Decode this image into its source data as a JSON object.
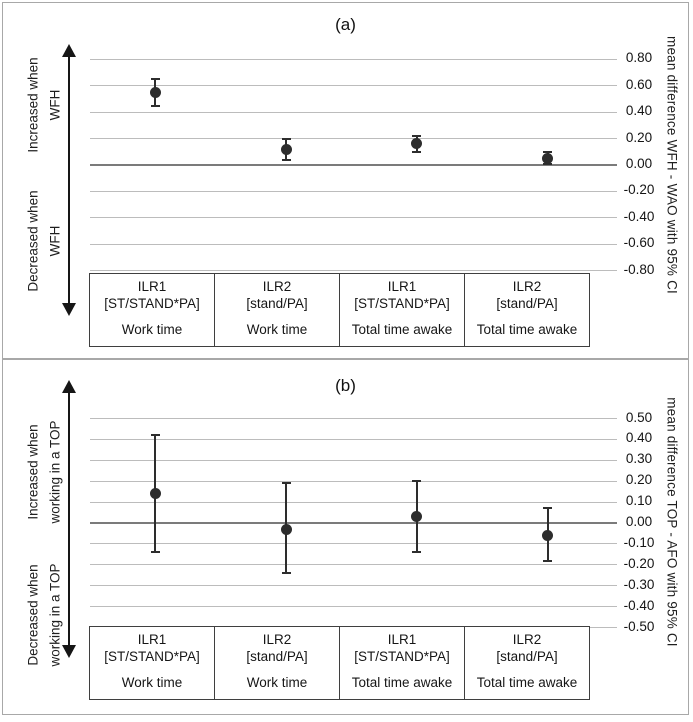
{
  "figure": {
    "accent_color": "#2d2d2d",
    "gridline_color": "#bcbcbc",
    "zero_line_color": "#7b7b7b",
    "frame_color": "#a8a8a8",
    "table_border_color": "#3f3f3f"
  },
  "chart_data": [
    {
      "type": "scatter",
      "subtype": "point-estimates-with-95CI-error-bars",
      "title": "(a)",
      "increase_label": "Increased when\nWFH",
      "decrease_label": "Decreased when\nWFH",
      "ylabel": "mean difference WFH - WAO with 95% CI",
      "ylim": [
        -0.8,
        0.8
      ],
      "grid": true,
      "yticks": [
        {
          "v": 0.8,
          "label": "0.80"
        },
        {
          "v": 0.6,
          "label": "0.60"
        },
        {
          "v": 0.4,
          "label": "0.40"
        },
        {
          "v": 0.2,
          "label": "0.20"
        },
        {
          "v": 0.0,
          "label": "0.00"
        },
        {
          "v": -0.2,
          "label": "-0.20"
        },
        {
          "v": -0.4,
          "label": "-0.40"
        },
        {
          "v": -0.6,
          "label": "-0.60"
        },
        {
          "v": -0.8,
          "label": "-0.80"
        }
      ],
      "categories": [
        {
          "model": "ILR1",
          "spec": "[ST/STAND*PA]",
          "period": "Work time"
        },
        {
          "model": "ILR2",
          "spec": "[stand/PA]",
          "period": "Work time"
        },
        {
          "model": "ILR1",
          "spec": "[ST/STAND*PA]",
          "period": "Total time awake"
        },
        {
          "model": "ILR2",
          "spec": "[stand/PA]",
          "period": "Total time awake"
        }
      ],
      "points": [
        {
          "mean": 0.55,
          "ci_low": 0.45,
          "ci_high": 0.65
        },
        {
          "mean": 0.12,
          "ci_low": 0.04,
          "ci_high": 0.2
        },
        {
          "mean": 0.16,
          "ci_low": 0.1,
          "ci_high": 0.22
        },
        {
          "mean": 0.05,
          "ci_low": 0.01,
          "ci_high": 0.1
        }
      ]
    },
    {
      "type": "scatter",
      "subtype": "point-estimates-with-95CI-error-bars",
      "title": "(b)",
      "increase_label": "Increased when\nworking in a TOP",
      "decrease_label": "Decreased when\nworking in a TOP",
      "ylabel": "mean difference TOP - AFO with 95% CI",
      "ylim": [
        -0.5,
        0.5
      ],
      "grid": true,
      "yticks": [
        {
          "v": 0.5,
          "label": "0.50"
        },
        {
          "v": 0.4,
          "label": "0.40"
        },
        {
          "v": 0.3,
          "label": "0.30"
        },
        {
          "v": 0.2,
          "label": "0.20"
        },
        {
          "v": 0.1,
          "label": "0.10"
        },
        {
          "v": 0.0,
          "label": "0.00"
        },
        {
          "v": -0.1,
          "label": "-0.10"
        },
        {
          "v": -0.2,
          "label": "-0.20"
        },
        {
          "v": -0.3,
          "label": "-0.30"
        },
        {
          "v": -0.4,
          "label": "-0.40"
        },
        {
          "v": -0.5,
          "label": "-0.50"
        }
      ],
      "categories": [
        {
          "model": "ILR1",
          "spec": "[ST/STAND*PA]",
          "period": "Work time"
        },
        {
          "model": "ILR2",
          "spec": "[stand/PA]",
          "period": "Work time"
        },
        {
          "model": "ILR1",
          "spec": "[ST/STAND*PA]",
          "period": "Total time awake"
        },
        {
          "model": "ILR2",
          "spec": "[stand/PA]",
          "period": "Total time awake"
        }
      ],
      "points": [
        {
          "mean": 0.14,
          "ci_low": -0.14,
          "ci_high": 0.42
        },
        {
          "mean": -0.03,
          "ci_low": -0.24,
          "ci_high": 0.19
        },
        {
          "mean": 0.03,
          "ci_low": -0.14,
          "ci_high": 0.2
        },
        {
          "mean": -0.06,
          "ci_low": -0.18,
          "ci_high": 0.07
        }
      ]
    }
  ]
}
